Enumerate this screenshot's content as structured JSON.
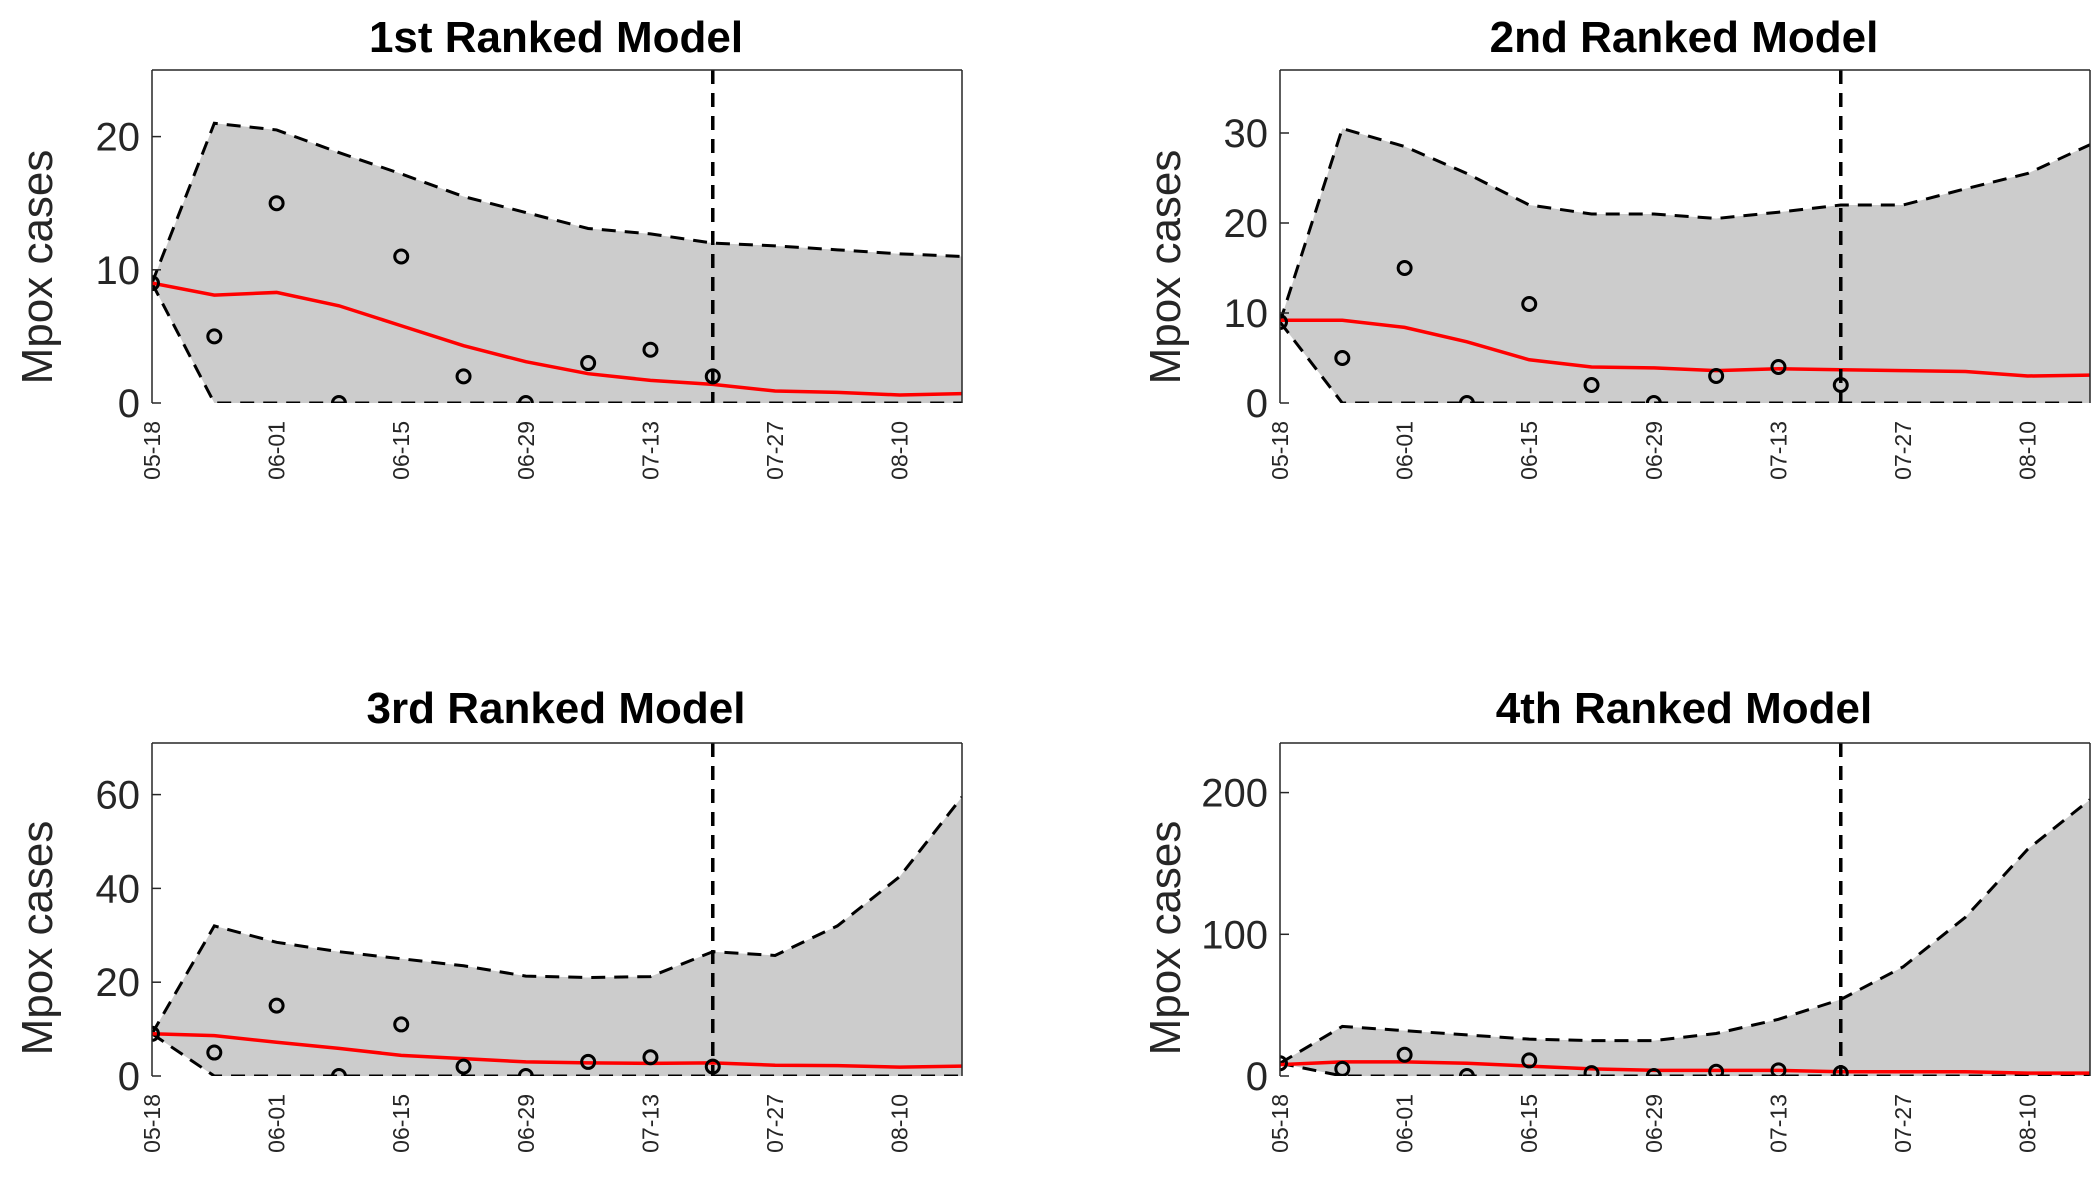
{
  "chart_data": [
    {
      "type": "line",
      "title": "1st Ranked Model",
      "ylabel": "Mpox cases",
      "xlabel": "",
      "ylim": [
        0,
        25
      ],
      "yticks": [
        0,
        10,
        20
      ],
      "xticks": [
        "05-18",
        "06-01",
        "06-15",
        "06-29",
        "07-13",
        "07-27",
        "08-10"
      ],
      "x": [
        "05-18",
        "05-25",
        "06-01",
        "06-08",
        "06-15",
        "06-22",
        "06-29",
        "07-06",
        "07-13",
        "07-20",
        "07-27",
        "08-03",
        "08-10",
        "08-17"
      ],
      "forecast_start": "07-20",
      "series": [
        {
          "kind": "observed",
          "values": [
            9,
            5,
            15,
            0,
            11,
            2,
            0,
            3,
            4,
            2,
            null,
            null,
            null,
            null
          ]
        },
        {
          "kind": "fit",
          "values": [
            9,
            8.1,
            8.3,
            7.3,
            5.8,
            4.3,
            3.1,
            2.2,
            1.7,
            1.4,
            0.9,
            0.8,
            0.6,
            0.7
          ]
        },
        {
          "kind": "upper",
          "values": [
            9,
            21,
            20.5,
            18.8,
            17.2,
            15.5,
            14.3,
            13.1,
            12.7,
            12,
            11.8,
            11.5,
            11.2,
            11
          ]
        },
        {
          "kind": "lower",
          "values": [
            9,
            0,
            0,
            0,
            0,
            0,
            0,
            0,
            0,
            0,
            0,
            0,
            0,
            0
          ]
        }
      ],
      "colors": {
        "fit": "#ff0000",
        "band": "#cccccc",
        "bounds": "#000000"
      }
    },
    {
      "type": "line",
      "title": "2nd Ranked Model",
      "ylabel": "Mpox cases",
      "xlabel": "",
      "ylim": [
        0,
        37
      ],
      "yticks": [
        0,
        10,
        20,
        30
      ],
      "xticks": [
        "05-18",
        "06-01",
        "06-15",
        "06-29",
        "07-13",
        "07-27",
        "08-10"
      ],
      "x": [
        "05-18",
        "05-25",
        "06-01",
        "06-08",
        "06-15",
        "06-22",
        "06-29",
        "07-06",
        "07-13",
        "07-20",
        "07-27",
        "08-03",
        "08-10",
        "08-17"
      ],
      "forecast_start": "07-20",
      "series": [
        {
          "kind": "observed",
          "values": [
            9,
            5,
            15,
            0,
            11,
            2,
            0,
            3,
            4,
            2,
            null,
            null,
            null,
            null
          ]
        },
        {
          "kind": "fit",
          "values": [
            9.2,
            9.2,
            8.4,
            6.8,
            4.8,
            4,
            3.9,
            3.6,
            3.8,
            3.7,
            3.6,
            3.5,
            3,
            3.1
          ]
        },
        {
          "kind": "upper",
          "values": [
            9,
            30.5,
            28.5,
            25.5,
            22,
            21,
            21,
            20.5,
            21.2,
            22,
            22,
            23.8,
            25.5,
            28.7
          ]
        },
        {
          "kind": "lower",
          "values": [
            9,
            0,
            0,
            0,
            0,
            0,
            0,
            0,
            0,
            0,
            0,
            0,
            0,
            0
          ]
        }
      ],
      "colors": {
        "fit": "#ff0000",
        "band": "#cccccc",
        "bounds": "#000000"
      }
    },
    {
      "type": "line",
      "title": "3rd Ranked Model",
      "ylabel": "Mpox cases",
      "xlabel": "",
      "ylim": [
        0,
        71
      ],
      "yticks": [
        0,
        20,
        40,
        60
      ],
      "xticks": [
        "05-18",
        "06-01",
        "06-15",
        "06-29",
        "07-13",
        "07-27",
        "08-10"
      ],
      "x": [
        "05-18",
        "05-25",
        "06-01",
        "06-08",
        "06-15",
        "06-22",
        "06-29",
        "07-06",
        "07-13",
        "07-20",
        "07-27",
        "08-03",
        "08-10",
        "08-17"
      ],
      "forecast_start": "07-20",
      "series": [
        {
          "kind": "observed",
          "values": [
            9,
            5,
            15,
            0,
            11,
            2,
            0,
            3,
            4,
            2,
            null,
            null,
            null,
            null
          ]
        },
        {
          "kind": "fit",
          "values": [
            9,
            8.6,
            7.2,
            5.9,
            4.4,
            3.7,
            3,
            2.8,
            2.7,
            2.8,
            2.3,
            2.2,
            1.9,
            2.1
          ]
        },
        {
          "kind": "upper",
          "values": [
            9,
            32,
            28.5,
            26.5,
            25,
            23.5,
            21.3,
            21,
            21.2,
            26.5,
            25.7,
            32,
            42.5,
            59.5
          ]
        },
        {
          "kind": "lower",
          "values": [
            9,
            0,
            0,
            0,
            0,
            0,
            0,
            0,
            0,
            0,
            0,
            0,
            0,
            0
          ]
        }
      ],
      "colors": {
        "fit": "#ff0000",
        "band": "#cccccc",
        "bounds": "#000000"
      }
    },
    {
      "type": "line",
      "title": "4th Ranked Model",
      "ylabel": "Mpox cases",
      "xlabel": "",
      "ylim": [
        0,
        235
      ],
      "yticks": [
        0,
        100,
        200
      ],
      "xticks": [
        "05-18",
        "06-01",
        "06-15",
        "06-29",
        "07-13",
        "07-27",
        "08-10"
      ],
      "x": [
        "05-18",
        "05-25",
        "06-01",
        "06-08",
        "06-15",
        "06-22",
        "06-29",
        "07-06",
        "07-13",
        "07-20",
        "07-27",
        "08-03",
        "08-10",
        "08-17"
      ],
      "forecast_start": "07-20",
      "series": [
        {
          "kind": "observed",
          "values": [
            9,
            5,
            15,
            0,
            11,
            2,
            0,
            3,
            4,
            2,
            null,
            null,
            null,
            null
          ]
        },
        {
          "kind": "fit",
          "values": [
            8,
            10,
            10,
            9,
            7,
            5,
            4,
            4,
            4,
            3,
            3,
            3,
            2,
            2
          ]
        },
        {
          "kind": "upper",
          "values": [
            9,
            35,
            32,
            29,
            26,
            25,
            25,
            30,
            40,
            54,
            77,
            112,
            160,
            195
          ]
        },
        {
          "kind": "lower",
          "values": [
            9,
            0,
            0,
            0,
            0,
            0,
            0,
            0,
            0,
            0,
            0,
            0,
            0,
            0
          ]
        }
      ],
      "colors": {
        "fit": "#ff0000",
        "band": "#cccccc",
        "bounds": "#000000"
      }
    }
  ]
}
